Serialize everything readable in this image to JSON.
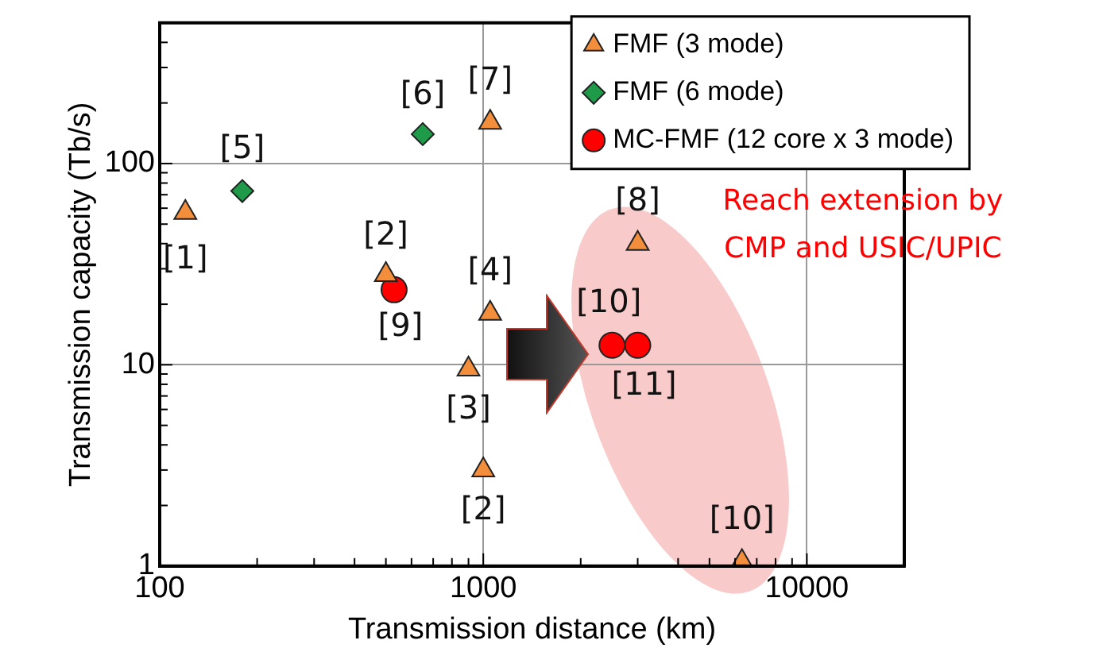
{
  "chart_data": {
    "type": "scatter",
    "xlabel": "Transmission distance (km)",
    "ylabel": "Transmission capacity (Tb/s)",
    "log": "xy",
    "grid": true,
    "legend": "top right",
    "xlim": [
      100,
      20000
    ],
    "xticks": [
      100,
      {
        "value": 200,
        "label": null
      },
      {
        "value": 300,
        "label": null
      },
      {
        "value": 400,
        "label": null
      },
      {
        "value": 500,
        "label": null
      },
      {
        "value": 600,
        "label": null
      },
      {
        "value": 700,
        "label": null
      },
      {
        "value": 800,
        "label": null
      },
      {
        "value": 900,
        "label": null
      },
      1000,
      {
        "value": 2000,
        "label": null
      },
      {
        "value": 3000,
        "label": null
      },
      {
        "value": 4000,
        "label": null
      },
      {
        "value": 5000,
        "label": null
      },
      {
        "value": 6000,
        "label": null
      },
      {
        "value": 7000,
        "label": null
      },
      {
        "value": 8000,
        "label": null
      },
      {
        "value": 9000,
        "label": null
      },
      10000
    ],
    "ylim": [
      1,
      500
    ],
    "yticks": [
      1,
      {
        "value": 2,
        "label": null
      },
      {
        "value": 3,
        "label": null
      },
      {
        "value": 4,
        "label": null
      },
      {
        "value": 5,
        "label": null
      },
      {
        "value": 6,
        "label": null
      },
      {
        "value": 7,
        "label": null
      },
      {
        "value": 8,
        "label": null
      },
      {
        "value": 9,
        "label": null
      },
      10,
      {
        "value": 20,
        "label": null
      },
      {
        "value": 30,
        "label": null
      },
      {
        "value": 40,
        "label": null
      },
      {
        "value": 50,
        "label": null
      },
      {
        "value": 60,
        "label": null
      },
      {
        "value": 70,
        "label": null
      },
      {
        "value": 80,
        "label": null
      },
      {
        "value": 90,
        "label": null
      },
      100,
      {
        "value": 200,
        "label": null
      },
      {
        "value": 300,
        "label": null
      },
      {
        "value": 400,
        "label": null
      }
    ],
    "series": [
      {
        "name": "FMF (3 mode)",
        "color": "#f28e3c",
        "marker": "triangle",
        "x": [
          120,
          500,
          900,
          1000,
          1050,
          1050,
          3000,
          6300
        ],
        "values": [
          57,
          28,
          9.5,
          3,
          18,
          160,
          40,
          1.05
        ]
      },
      {
        "name": "FMF (6 mode)",
        "color": "#1e9a48",
        "marker": "diamond",
        "x": [
          180,
          650
        ],
        "values": [
          73,
          140
        ]
      },
      {
        "name": "MC-FMF (12 core x 3 mode)",
        "color": "#ff0000",
        "marker": "circle",
        "x": [
          530,
          2500,
          3000
        ],
        "values": [
          23.6,
          12.5,
          12.5
        ]
      }
    ],
    "annotations": [
      {
        "text": "[1]",
        "x": 120,
        "y": 57
      },
      {
        "text": "[5]",
        "x": 180,
        "y": 73
      },
      {
        "text": "[6]",
        "x": 650,
        "y": 140
      },
      {
        "text": "[7]",
        "x": 1050,
        "y": 160
      },
      {
        "text": "[2]",
        "x": 500,
        "y": 28
      },
      {
        "text": "[9]",
        "x": 530,
        "y": 23.6
      },
      {
        "text": "[4]",
        "x": 1050,
        "y": 18
      },
      {
        "text": "[3]",
        "x": 900,
        "y": 9.5
      },
      {
        "text": "[2]",
        "x": 1000,
        "y": 3
      },
      {
        "text": "[8]",
        "x": 3000,
        "y": 40
      },
      {
        "text": "[10]",
        "x": 2500,
        "y": 12.5
      },
      {
        "text": "[11]",
        "x": 3000,
        "y": 12.5
      },
      {
        "text": "[10]",
        "x": 6300,
        "y": 1.05
      },
      "Reach extension by CMP and USIC/UPIC"
    ]
  }
}
